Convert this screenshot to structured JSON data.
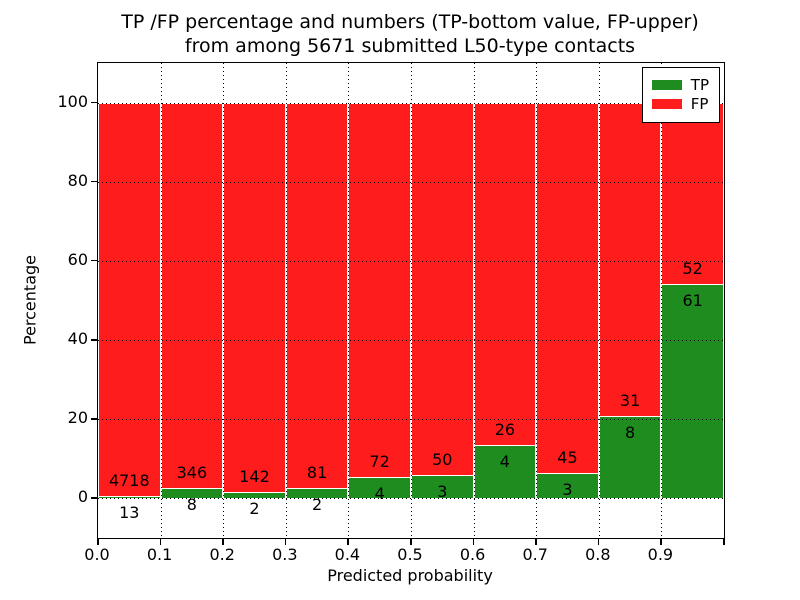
{
  "chart_data": {
    "type": "bar",
    "stacked": true,
    "normalized_to_percent": true,
    "title_line1": "TP /FP percentage and numbers (TP-bottom value, FP-upper)",
    "title_line2": "from among 5671 submitted L50-type contacts",
    "xlabel": "Predicted probability",
    "ylabel": "Percentage",
    "xlim": [
      0.0,
      1.0
    ],
    "ylim": [
      -10,
      110
    ],
    "xtick_labels": [
      "0.0",
      "0.1",
      "0.2",
      "0.3",
      "0.4",
      "0.5",
      "0.6",
      "0.7",
      "0.8",
      "0.9"
    ],
    "ytick_values": [
      0,
      20,
      40,
      60,
      80,
      100
    ],
    "grid": "dotted black, horizontal at yticks and vertical at bin edges, drawn above bars",
    "bin_width": 0.1,
    "bin_starts": [
      0.0,
      0.1,
      0.2,
      0.3,
      0.4,
      0.5,
      0.6,
      0.7,
      0.8,
      0.9
    ],
    "series": [
      {
        "name": "TP",
        "color": "#1e8c1e",
        "counts": [
          13,
          8,
          2,
          2,
          4,
          3,
          4,
          3,
          8,
          61
        ]
      },
      {
        "name": "FP",
        "color": "#ff1c1c",
        "counts": [
          4718,
          346,
          142,
          81,
          72,
          50,
          26,
          45,
          31,
          52
        ]
      }
    ],
    "tp_percent_per_bin": [
      0.27,
      2.26,
      1.39,
      2.41,
      5.26,
      5.66,
      13.33,
      6.25,
      20.51,
      53.98
    ],
    "total_contacts": 5671,
    "bar_edge_color": "#ffffff",
    "legend_position": "upper right",
    "legend_entries": [
      "TP",
      "FP"
    ]
  }
}
